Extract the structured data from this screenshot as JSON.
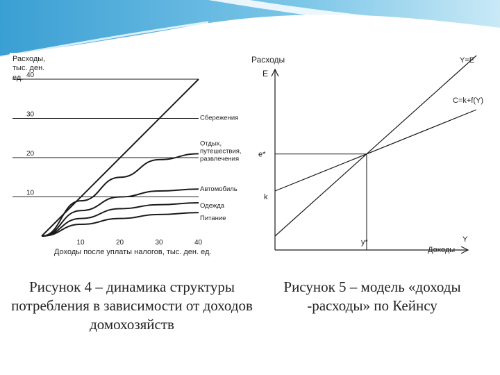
{
  "chart_data": [
    {
      "type": "line",
      "ylabel": "Расходы, тыс. ден. ед.",
      "xlabel": "Доходы после уплаты налогов, тыс. ден. ед.",
      "xlim": [
        0,
        40
      ],
      "ylim": [
        0,
        40
      ],
      "x_ticks": [
        "10",
        "20",
        "30",
        "40"
      ],
      "y_ticks": [
        "10",
        "20",
        "30",
        "40"
      ],
      "origin": [
        0,
        0
      ],
      "series": [
        {
          "name": "Сбережения",
          "x": [
            0,
            40
          ],
          "y": [
            0,
            40
          ]
        },
        {
          "name": "Отдых, путешествия, развлечения",
          "x": [
            0,
            10,
            20,
            30,
            40
          ],
          "y": [
            0,
            9,
            15,
            19.5,
            21
          ]
        },
        {
          "name": "Автомобиль",
          "x": [
            0,
            10,
            20,
            30,
            40
          ],
          "y": [
            0,
            6.5,
            10,
            11.5,
            12
          ]
        },
        {
          "name": "Одежда",
          "x": [
            0,
            10,
            20,
            30,
            40
          ],
          "y": [
            0,
            4.5,
            7,
            8,
            8.5
          ]
        },
        {
          "name": "Питание",
          "x": [
            0,
            10,
            20,
            30,
            40
          ],
          "y": [
            0,
            3,
            4.5,
            5.5,
            6
          ]
        }
      ],
      "gridlines_y": [
        10,
        20,
        30,
        40
      ]
    },
    {
      "type": "line",
      "ylabel": "Расходы",
      "y_axis_symbol": "E",
      "xlabel": "Доходы",
      "x_axis_symbol": "Y",
      "series": [
        {
          "name": "Y=E",
          "x": [
            0,
            10
          ],
          "y": [
            0,
            10
          ]
        },
        {
          "name": "C=k+f(Y)",
          "x": [
            0,
            10
          ],
          "y": [
            2.5,
            7
          ]
        }
      ],
      "intercept_label": "k",
      "equilibrium": {
        "label_x": "y*",
        "label_y": "e*",
        "x": 4.55,
        "y": 4.55
      },
      "xlim": [
        0,
        10
      ],
      "ylim": [
        0,
        10
      ]
    }
  ],
  "captions": {
    "left": "Рисунок 4 – динамика структуры потребления в зависимости от доходов домохозяйств",
    "right": "Рисунок 5 – модель «доходы -расходы» по Кейнсу"
  },
  "colors": {
    "line": "#1a1a1a",
    "banner": "#5ab3dc",
    "banner_light": "#bfe3f3"
  }
}
